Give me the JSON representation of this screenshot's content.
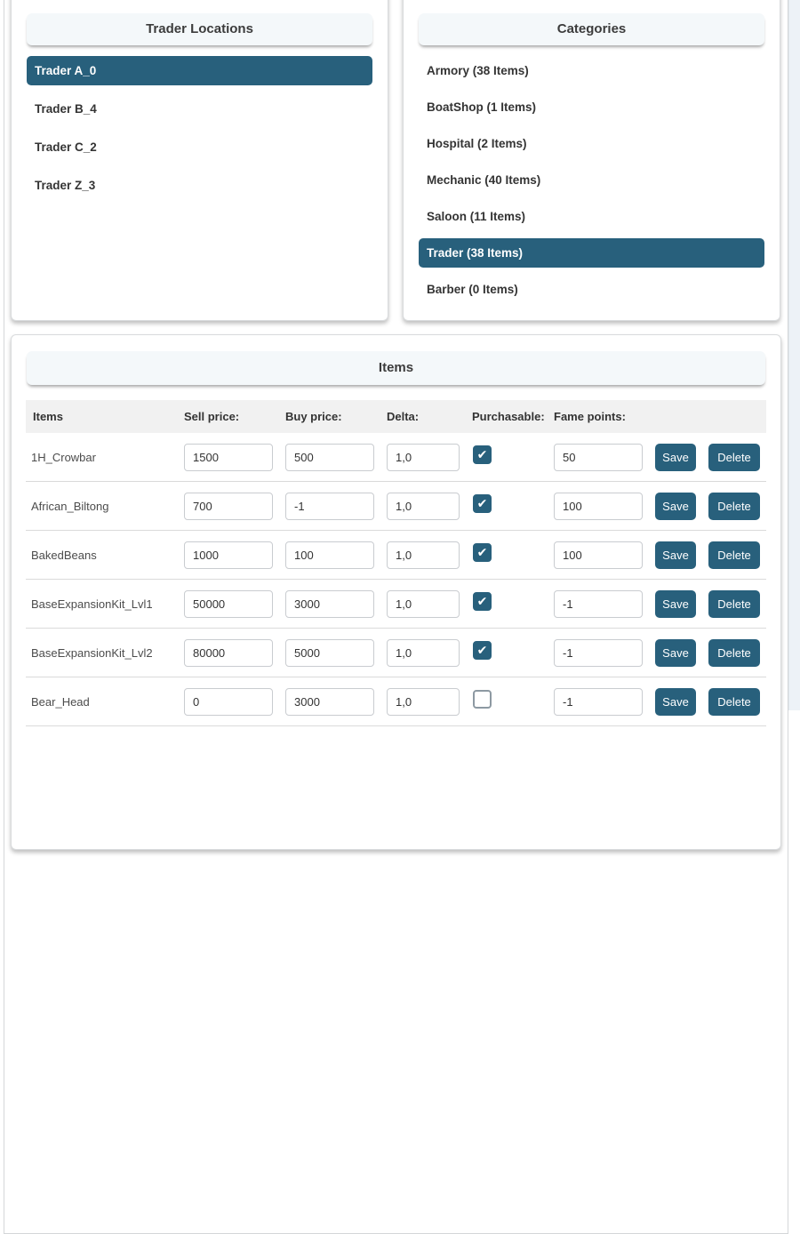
{
  "colors": {
    "accent": "#28607c",
    "header_bg": "#f4f8fa",
    "table_header_bg": "#f1f1f1"
  },
  "trader_locations": {
    "title": "Trader Locations",
    "items": [
      {
        "label": "Trader A_0",
        "selected": true
      },
      {
        "label": "Trader B_4",
        "selected": false
      },
      {
        "label": "Trader C_2",
        "selected": false
      },
      {
        "label": "Trader Z_3",
        "selected": false
      }
    ]
  },
  "categories": {
    "title": "Categories",
    "items": [
      {
        "label": "Armory (38 Items)",
        "selected": false
      },
      {
        "label": "BoatShop (1 Items)",
        "selected": false
      },
      {
        "label": "Hospital (2 Items)",
        "selected": false
      },
      {
        "label": "Mechanic (40 Items)",
        "selected": false
      },
      {
        "label": "Saloon (11 Items)",
        "selected": false
      },
      {
        "label": "Trader (38 Items)",
        "selected": true
      },
      {
        "label": "Barber (0 Items)",
        "selected": false
      }
    ]
  },
  "items_panel": {
    "title": "Items",
    "columns": [
      "Items",
      "Sell price:",
      "Buy price:",
      "Delta:",
      "Purchasable:",
      "Fame points:"
    ],
    "save_label": "Save",
    "delete_label": "Delete",
    "rows": [
      {
        "name": "1H_Crowbar",
        "sell": "1500",
        "buy": "500",
        "delta": "1,0",
        "purchasable": true,
        "fame": "50"
      },
      {
        "name": "African_Biltong",
        "sell": "700",
        "buy": "-1",
        "delta": "1,0",
        "purchasable": true,
        "fame": "100"
      },
      {
        "name": "BakedBeans",
        "sell": "1000",
        "buy": "100",
        "delta": "1,0",
        "purchasable": true,
        "fame": "100"
      },
      {
        "name": "BaseExpansionKit_Lvl1",
        "sell": "50000",
        "buy": "3000",
        "delta": "1,0",
        "purchasable": true,
        "fame": "-1"
      },
      {
        "name": "BaseExpansionKit_Lvl2",
        "sell": "80000",
        "buy": "5000",
        "delta": "1,0",
        "purchasable": true,
        "fame": "-1"
      },
      {
        "name": "Bear_Head",
        "sell": "0",
        "buy": "3000",
        "delta": "1,0",
        "purchasable": false,
        "fame": "-1"
      }
    ]
  }
}
